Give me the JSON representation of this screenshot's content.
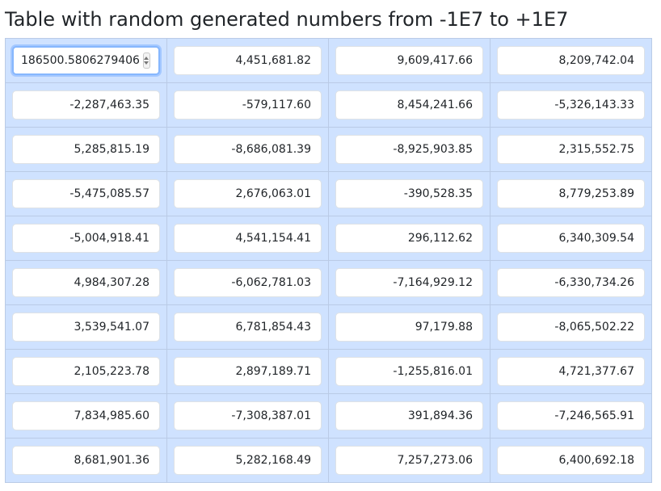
{
  "title": "Table with random generated numbers from -1E7 to +1E7",
  "focused_cell": {
    "row": 0,
    "col": 0,
    "raw_value": "186500.5806279406"
  },
  "rows": [
    [
      "186500.5806279406",
      "4,451,681.82",
      "9,609,417.66",
      "8,209,742.04"
    ],
    [
      "-2,287,463.35",
      "-579,117.60",
      "8,454,241.66",
      "-5,326,143.33"
    ],
    [
      "5,285,815.19",
      "-8,686,081.39",
      "-8,925,903.85",
      "2,315,552.75"
    ],
    [
      "-5,475,085.57",
      "2,676,063.01",
      "-390,528.35",
      "8,779,253.89"
    ],
    [
      "-5,004,918.41",
      "4,541,154.41",
      "296,112.62",
      "6,340,309.54"
    ],
    [
      "4,984,307.28",
      "-6,062,781.03",
      "-7,164,929.12",
      "-6,330,734.26"
    ],
    [
      "3,539,541.07",
      "6,781,854.43",
      "97,179.88",
      "-8,065,502.22"
    ],
    [
      "2,105,223.78",
      "2,897,189.71",
      "-1,255,816.01",
      "4,721,377.67"
    ],
    [
      "7,834,985.60",
      "-7,308,387.01",
      "391,894.36",
      "-7,246,565.91"
    ],
    [
      "8,681,901.36",
      "5,282,168.49",
      "7,257,273.06",
      "6,400,692.18"
    ]
  ],
  "icons": {
    "stepper": "spinner-arrows-icon"
  },
  "colors": {
    "table_background": "#cfe2ff",
    "cell_border": "#bacbe6",
    "input_border": "#dee2e6",
    "focus_border": "#86b7fe",
    "text": "#212529"
  }
}
